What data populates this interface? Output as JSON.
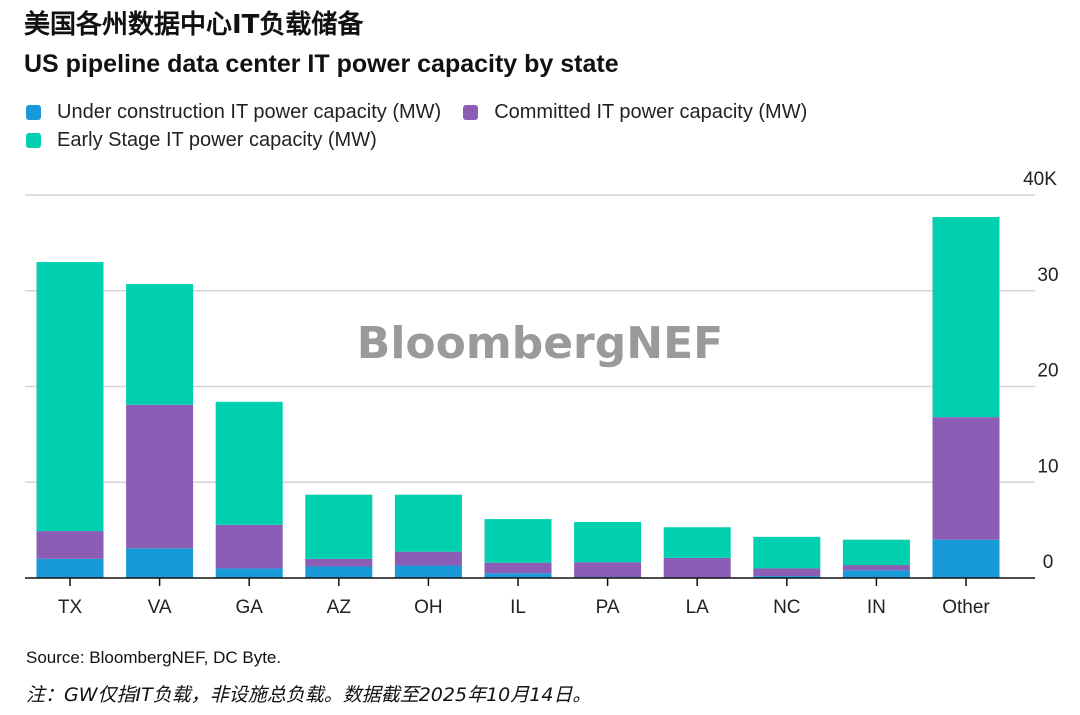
{
  "title_cn": "美国各州数据中心IT负载储备",
  "title_en": "US pipeline data center IT power capacity by state",
  "watermark": "BloombergNEF",
  "footer": {
    "source": "Source: BloombergNEF, DC Byte.",
    "note": "注：GW仅指IT负载，非设施总负载。数据截至2025年10月14日。"
  },
  "chart_data": {
    "type": "bar",
    "stacked": true,
    "title": "US pipeline data center IT power capacity by state",
    "xlabel": "",
    "ylabel": "",
    "ylim": [
      0,
      40
    ],
    "y_unit": "K MW",
    "y_ticks": [
      0,
      10,
      20,
      30,
      40
    ],
    "y_tick_labels": [
      "0",
      "10",
      "20",
      "30",
      "40K"
    ],
    "y_axis_position": "right",
    "grid": true,
    "legend_position": "top-left",
    "categories": [
      "TX",
      "VA",
      "GA",
      "AZ",
      "OH",
      "IL",
      "PA",
      "LA",
      "NC",
      "IN",
      "Other"
    ],
    "series": [
      {
        "name": "Under construction IT power capacity (MW)",
        "color": "#1899d8",
        "values": [
          2.0,
          3.1,
          1.0,
          1.2,
          1.3,
          0.5,
          0.1,
          0.0,
          0.2,
          0.8,
          4.0
        ]
      },
      {
        "name": "Committed IT power capacity (MW)",
        "color": "#8b5db4",
        "values": [
          2.9,
          15.0,
          4.55,
          0.8,
          1.45,
          1.1,
          1.55,
          2.1,
          0.8,
          0.55,
          12.8
        ]
      },
      {
        "name": "Early Stage IT power capacity (MW)",
        "color": "#00d0b0",
        "values": [
          28.1,
          12.6,
          12.85,
          6.7,
          5.95,
          4.55,
          4.2,
          3.2,
          3.3,
          2.65,
          20.9
        ]
      }
    ]
  }
}
